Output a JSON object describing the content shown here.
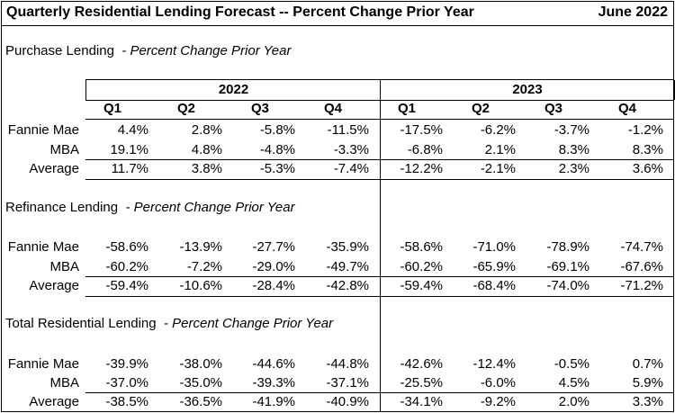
{
  "header": {
    "title": "Quarterly Residential Lending Forecast -- Percent Change Prior Year",
    "date": "June 2022"
  },
  "years": [
    "2022",
    "2023"
  ],
  "quarters": [
    "Q1",
    "Q2",
    "Q3",
    "Q4",
    "Q1",
    "Q2",
    "Q3",
    "Q4"
  ],
  "sections": [
    {
      "name": "Purchase Lending",
      "subtitle": "- Percent Change Prior Year"
    },
    {
      "name": "Refinance Lending",
      "subtitle": "- Percent Change Prior Year"
    },
    {
      "name": "Total Residential Lending",
      "subtitle": "- Percent Change Prior Year"
    }
  ],
  "chart_data": {
    "type": "table",
    "title": "Quarterly Residential Lending Forecast -- Percent Change Prior Year",
    "columns": [
      "2022 Q1",
      "2022 Q2",
      "2022 Q3",
      "2022 Q4",
      "2023 Q1",
      "2023 Q2",
      "2023 Q3",
      "2023 Q4"
    ],
    "sections": [
      {
        "name": "Purchase Lending",
        "rows": [
          {
            "label": "Fannie Mae",
            "values": [
              "4.4%",
              "2.8%",
              "-5.8%",
              "-11.5%",
              "-17.5%",
              "-6.2%",
              "-3.7%",
              "-1.2%"
            ]
          },
          {
            "label": "MBA",
            "values": [
              "19.1%",
              "4.8%",
              "-4.8%",
              "-3.3%",
              "-6.8%",
              "2.1%",
              "8.3%",
              "8.3%"
            ]
          },
          {
            "label": "Average",
            "values": [
              "11.7%",
              "3.8%",
              "-5.3%",
              "-7.4%",
              "-12.2%",
              "-2.1%",
              "2.3%",
              "3.6%"
            ]
          }
        ]
      },
      {
        "name": "Refinance Lending",
        "rows": [
          {
            "label": "Fannie Mae",
            "values": [
              "-58.6%",
              "-13.9%",
              "-27.7%",
              "-35.9%",
              "-58.6%",
              "-71.0%",
              "-78.9%",
              "-74.7%"
            ]
          },
          {
            "label": "MBA",
            "values": [
              "-60.2%",
              "-7.2%",
              "-29.0%",
              "-49.7%",
              "-60.2%",
              "-65.9%",
              "-69.1%",
              "-67.6%"
            ]
          },
          {
            "label": "Average",
            "values": [
              "-59.4%",
              "-10.6%",
              "-28.4%",
              "-42.8%",
              "-59.4%",
              "-68.4%",
              "-74.0%",
              "-71.2%"
            ]
          }
        ]
      },
      {
        "name": "Total Residential Lending",
        "rows": [
          {
            "label": "Fannie Mae",
            "values": [
              "-39.9%",
              "-38.0%",
              "-44.6%",
              "-44.8%",
              "-42.6%",
              "-12.4%",
              "-0.5%",
              "0.7%"
            ]
          },
          {
            "label": "MBA",
            "values": [
              "-37.0%",
              "-35.0%",
              "-39.3%",
              "-37.1%",
              "-25.5%",
              "-6.0%",
              "4.5%",
              "5.9%"
            ]
          },
          {
            "label": "Average",
            "values": [
              "-38.5%",
              "-36.5%",
              "-41.9%",
              "-40.9%",
              "-34.1%",
              "-9.2%",
              "2.0%",
              "3.3%"
            ]
          }
        ]
      }
    ]
  }
}
